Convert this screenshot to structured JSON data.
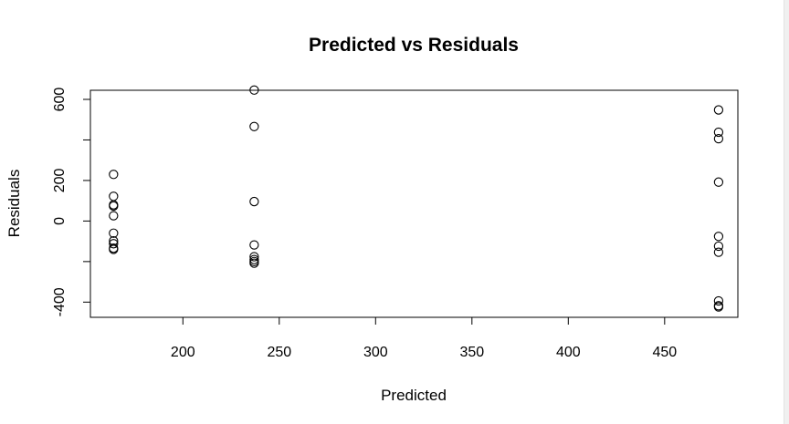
{
  "chart_data": {
    "type": "scatter",
    "title": "Predicted vs Residuals",
    "xlabel": "Predicted",
    "ylabel": "Residuals",
    "xlim": [
      152,
      488
    ],
    "ylim": [
      -475,
      645
    ],
    "x_ticks": [
      200,
      250,
      300,
      350,
      400,
      450
    ],
    "x_tick_labels": [
      "200",
      "250",
      "300",
      "350",
      "400",
      "450"
    ],
    "y_ticks": [
      -400,
      -200,
      0,
      200,
      400,
      600
    ],
    "y_tick_labels": [
      "-400",
      "",
      "0",
      "200",
      "",
      "600"
    ],
    "grid": false,
    "marker": "open-circle",
    "marker_color": "#000000",
    "points": [
      {
        "x": 164,
        "y": 230
      },
      {
        "x": 164,
        "y": 122
      },
      {
        "x": 164,
        "y": 80
      },
      {
        "x": 164,
        "y": 74
      },
      {
        "x": 164,
        "y": 26
      },
      {
        "x": 164,
        "y": -60
      },
      {
        "x": 164,
        "y": -98
      },
      {
        "x": 164,
        "y": -112
      },
      {
        "x": 164,
        "y": -134
      },
      {
        "x": 164,
        "y": -140
      },
      {
        "x": 237,
        "y": 646
      },
      {
        "x": 237,
        "y": 466
      },
      {
        "x": 237,
        "y": 96
      },
      {
        "x": 237,
        "y": -118
      },
      {
        "x": 237,
        "y": -176
      },
      {
        "x": 237,
        "y": -190
      },
      {
        "x": 237,
        "y": -200
      },
      {
        "x": 237,
        "y": -208
      },
      {
        "x": 478,
        "y": 548
      },
      {
        "x": 478,
        "y": 438
      },
      {
        "x": 478,
        "y": 406
      },
      {
        "x": 478,
        "y": 192
      },
      {
        "x": 478,
        "y": -76
      },
      {
        "x": 478,
        "y": -124
      },
      {
        "x": 478,
        "y": -154
      },
      {
        "x": 478,
        "y": -394
      },
      {
        "x": 478,
        "y": -418
      },
      {
        "x": 478,
        "y": -424
      }
    ]
  }
}
